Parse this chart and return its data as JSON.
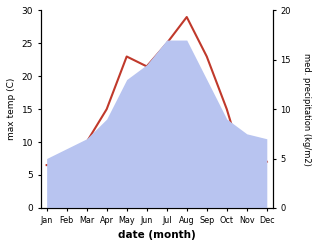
{
  "months": [
    "Jan",
    "Feb",
    "Mar",
    "Apr",
    "May",
    "Jun",
    "Jul",
    "Aug",
    "Sep",
    "Oct",
    "Nov",
    "Dec"
  ],
  "temp": [
    6.5,
    6.5,
    10.0,
    15.0,
    23.0,
    21.5,
    25.0,
    29.0,
    23.0,
    15.0,
    5.0,
    7.0
  ],
  "precip": [
    5.0,
    6.0,
    7.0,
    9.0,
    13.0,
    14.5,
    17.0,
    17.0,
    13.0,
    9.0,
    7.5,
    7.0
  ],
  "precip_fill_color": "#b8c4f0",
  "temp_color": "#c0392b",
  "temp_ylim": [
    0,
    30
  ],
  "precip_ylim": [
    0,
    20
  ],
  "temp_yticks": [
    0,
    5,
    10,
    15,
    20,
    25,
    30
  ],
  "precip_yticks": [
    0,
    5,
    10,
    15,
    20
  ],
  "xlabel": "date (month)",
  "ylabel_left": "max temp (C)",
  "ylabel_right": "med. precipitation (kg/m2)"
}
